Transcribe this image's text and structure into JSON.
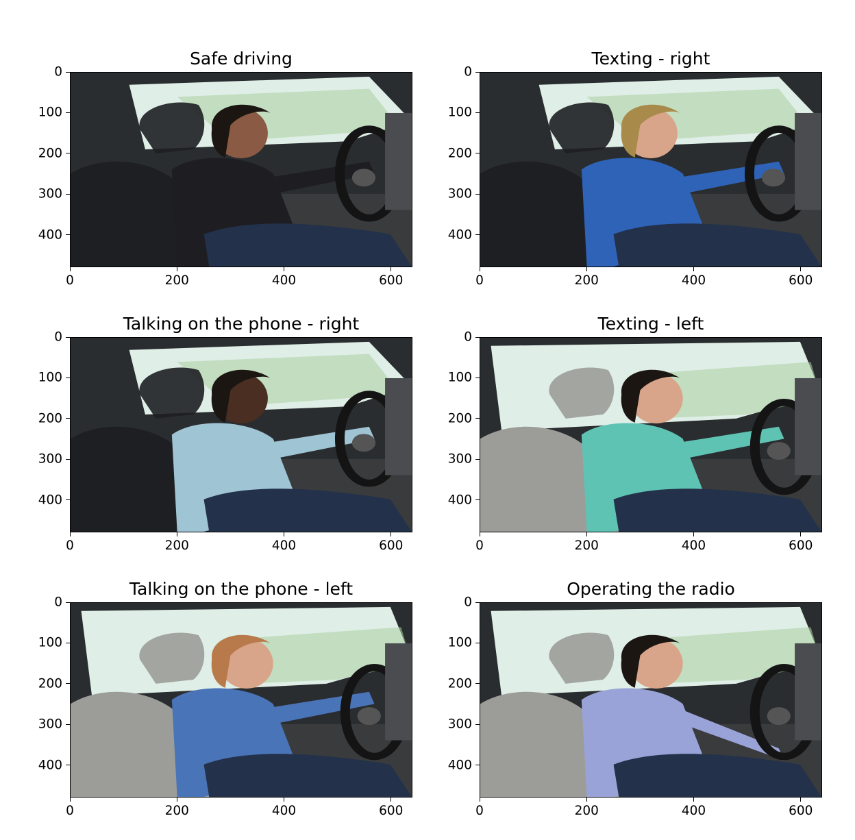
{
  "figure": {
    "panels": [
      {
        "title": "Safe driving",
        "scene": "safe-driving-scene"
      },
      {
        "title": "Texting - right",
        "scene": "texting-right-scene"
      },
      {
        "title": "Talking on the phone - right",
        "scene": "phone-right-scene"
      },
      {
        "title": "Texting - left",
        "scene": "texting-left-scene"
      },
      {
        "title": "Talking on the phone - left",
        "scene": "phone-left-scene"
      },
      {
        "title": "Operating the radio",
        "scene": "radio-scene"
      }
    ],
    "x_ticks": [
      "0",
      "200",
      "400",
      "600"
    ],
    "y_ticks": [
      "0",
      "100",
      "200",
      "300",
      "400"
    ],
    "x_range": [
      0,
      640
    ],
    "y_range": [
      0,
      480
    ],
    "x_tick_values": [
      0,
      200,
      400,
      600
    ],
    "y_tick_values": [
      0,
      100,
      200,
      300,
      400
    ]
  }
}
